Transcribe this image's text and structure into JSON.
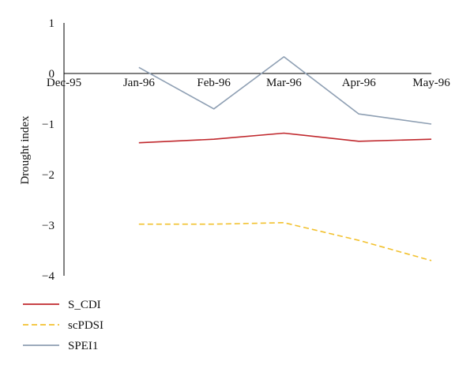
{
  "chart_data": {
    "type": "line",
    "ylabel": "Drought index",
    "xlabel": "",
    "ylim": [
      -4,
      1
    ],
    "y_ticks": [
      "1",
      "0",
      "−1",
      "−2",
      "−3",
      "−4"
    ],
    "x_ticks": [
      "Dec-95",
      "Jan-96",
      "Feb-96",
      "Mar-96",
      "Apr-96",
      "May-96"
    ],
    "x": [
      "1996-01-01",
      "1996-02-01",
      "1996-03-01",
      "1996-04-01",
      "1996-05-01"
    ],
    "series": [
      {
        "name": "S_CDI",
        "color": "#c0282d",
        "dash": "solid",
        "values": [
          -1.37,
          -1.3,
          -1.18,
          -1.34,
          -1.3
        ]
      },
      {
        "name": "scPDSI",
        "color": "#f2c12e",
        "dash": "dashed",
        "values": [
          -2.98,
          -2.98,
          -2.95,
          -3.3,
          -3.7
        ]
      },
      {
        "name": "SPEI1",
        "color": "#8e9fb3",
        "dash": "solid",
        "values": [
          0.12,
          -0.7,
          0.33,
          -0.8,
          -1.0
        ]
      }
    ],
    "grid": false,
    "legend_position": "bottom-left"
  }
}
